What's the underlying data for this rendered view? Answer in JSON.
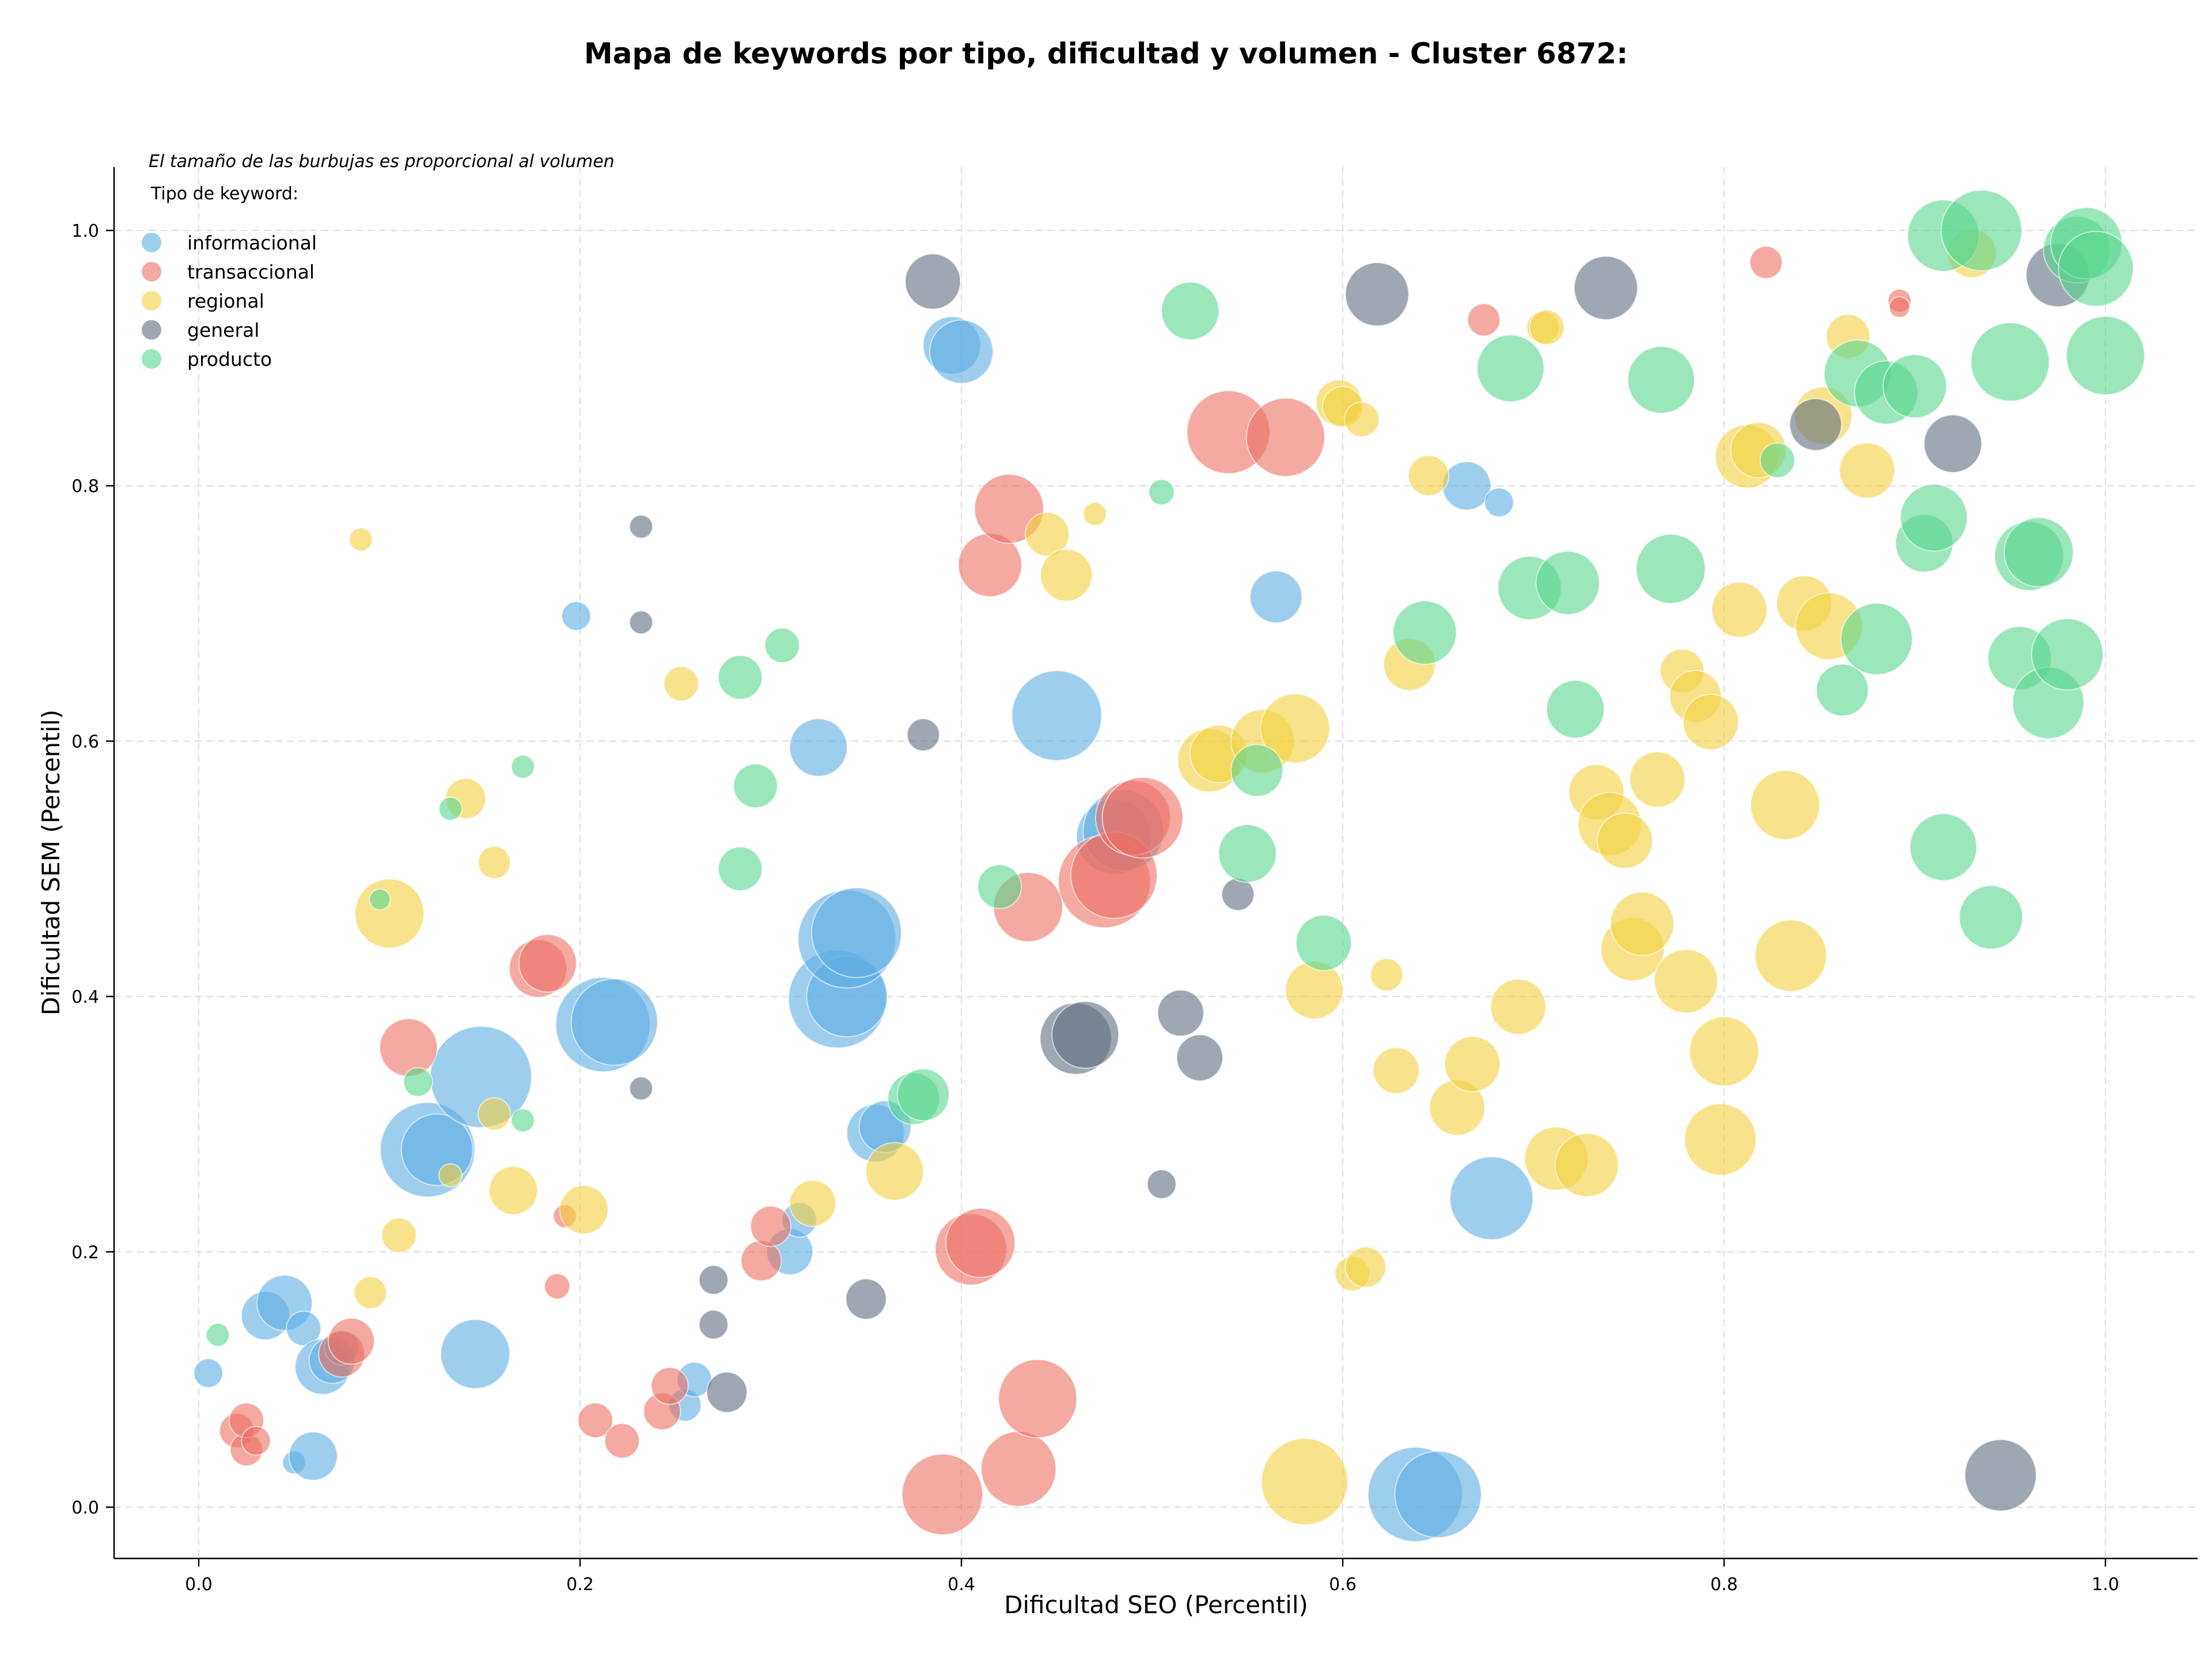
{
  "chart_data": {
    "type": "scatter",
    "title": "Mapa de keywords por tipo, dificultad y volumen - Cluster 6872:",
    "xlabel": "Dificultad SEO (Percentil)",
    "ylabel": "Dificultad SEM (Percentil)",
    "xlim": [
      -0.045,
      1.05
    ],
    "ylim": [
      -0.04,
      1.05
    ],
    "xticks": [
      "0.0",
      "0.2",
      "0.4",
      "0.6",
      "0.8",
      "1.0"
    ],
    "yticks": [
      "0.0",
      "0.2",
      "0.4",
      "0.6",
      "0.8",
      "1.0"
    ],
    "grid": true,
    "note": "El tamaño de las burbujas es proporcional al volumen",
    "legend_title": "Tipo de keyword:",
    "legend_position": "top-left",
    "series": [
      {
        "name": "informacional",
        "color": "#5DADE2",
        "points": [
          [
            0.005,
            0.105,
            0.25
          ],
          [
            0.05,
            0.035,
            0.2
          ],
          [
            0.06,
            0.04,
            0.42
          ],
          [
            0.035,
            0.15,
            0.42
          ],
          [
            0.045,
            0.16,
            0.48
          ],
          [
            0.055,
            0.14,
            0.3
          ],
          [
            0.065,
            0.11,
            0.48
          ],
          [
            0.07,
            0.115,
            0.4
          ],
          [
            0.075,
            0.125,
            0.3
          ],
          [
            0.12,
            0.28,
            0.82
          ],
          [
            0.125,
            0.28,
            0.62
          ],
          [
            0.145,
            0.12,
            0.6
          ],
          [
            0.148,
            0.337,
            0.88
          ],
          [
            0.198,
            0.698,
            0.25
          ],
          [
            0.212,
            0.378,
            0.82
          ],
          [
            0.218,
            0.38,
            0.75
          ],
          [
            0.255,
            0.08,
            0.28
          ],
          [
            0.26,
            0.1,
            0.3
          ],
          [
            0.31,
            0.2,
            0.4
          ],
          [
            0.315,
            0.225,
            0.3
          ],
          [
            0.325,
            0.595,
            0.5
          ],
          [
            0.335,
            0.398,
            0.85
          ],
          [
            0.34,
            0.4,
            0.7
          ],
          [
            0.34,
            0.445,
            0.85
          ],
          [
            0.345,
            0.45,
            0.78
          ],
          [
            0.355,
            0.293,
            0.5
          ],
          [
            0.36,
            0.298,
            0.45
          ],
          [
            0.395,
            0.91,
            0.5
          ],
          [
            0.4,
            0.905,
            0.55
          ],
          [
            0.45,
            0.62,
            0.78
          ],
          [
            0.48,
            0.525,
            0.65
          ],
          [
            0.485,
            0.53,
            0.7
          ],
          [
            0.565,
            0.713,
            0.45
          ],
          [
            0.665,
            0.8,
            0.42
          ],
          [
            0.682,
            0.787,
            0.25
          ],
          [
            0.678,
            0.242,
            0.72
          ],
          [
            0.638,
            0.01,
            0.82
          ],
          [
            0.65,
            0.01,
            0.75
          ]
        ]
      },
      {
        "name": "transaccional",
        "color": "#EC7063",
        "points": [
          [
            0.02,
            0.06,
            0.3
          ],
          [
            0.025,
            0.045,
            0.28
          ],
          [
            0.025,
            0.068,
            0.3
          ],
          [
            0.03,
            0.052,
            0.25
          ],
          [
            0.075,
            0.12,
            0.4
          ],
          [
            0.08,
            0.13,
            0.4
          ],
          [
            0.11,
            0.36,
            0.5
          ],
          [
            0.178,
            0.422,
            0.5
          ],
          [
            0.183,
            0.426,
            0.5
          ],
          [
            0.188,
            0.173,
            0.22
          ],
          [
            0.192,
            0.228,
            0.2
          ],
          [
            0.208,
            0.068,
            0.3
          ],
          [
            0.222,
            0.052,
            0.3
          ],
          [
            0.243,
            0.075,
            0.32
          ],
          [
            0.247,
            0.095,
            0.32
          ],
          [
            0.295,
            0.193,
            0.35
          ],
          [
            0.3,
            0.22,
            0.35
          ],
          [
            0.39,
            0.01,
            0.7
          ],
          [
            0.405,
            0.202,
            0.62
          ],
          [
            0.41,
            0.207,
            0.6
          ],
          [
            0.415,
            0.738,
            0.55
          ],
          [
            0.425,
            0.782,
            0.6
          ],
          [
            0.43,
            0.03,
            0.65
          ],
          [
            0.435,
            0.47,
            0.6
          ],
          [
            0.44,
            0.085,
            0.68
          ],
          [
            0.475,
            0.49,
            0.8
          ],
          [
            0.48,
            0.495,
            0.75
          ],
          [
            0.49,
            0.54,
            0.65
          ],
          [
            0.495,
            0.54,
            0.7
          ],
          [
            0.54,
            0.842,
            0.72
          ],
          [
            0.57,
            0.838,
            0.68
          ],
          [
            0.674,
            0.93,
            0.28
          ],
          [
            0.822,
            0.975,
            0.28
          ],
          [
            0.892,
            0.945,
            0.2
          ],
          [
            0.892,
            0.94,
            0.18
          ]
        ]
      },
      {
        "name": "regional",
        "color": "#F4D03F",
        "points": [
          [
            0.085,
            0.758,
            0.2
          ],
          [
            0.09,
            0.168,
            0.28
          ],
          [
            0.1,
            0.465,
            0.6
          ],
          [
            0.105,
            0.213,
            0.3
          ],
          [
            0.132,
            0.26,
            0.2
          ],
          [
            0.14,
            0.555,
            0.35
          ],
          [
            0.155,
            0.505,
            0.28
          ],
          [
            0.155,
            0.308,
            0.28
          ],
          [
            0.165,
            0.248,
            0.42
          ],
          [
            0.202,
            0.233,
            0.42
          ],
          [
            0.253,
            0.645,
            0.3
          ],
          [
            0.322,
            0.238,
            0.4
          ],
          [
            0.365,
            0.263,
            0.5
          ],
          [
            0.445,
            0.762,
            0.38
          ],
          [
            0.455,
            0.73,
            0.45
          ],
          [
            0.47,
            0.778,
            0.2
          ],
          [
            0.53,
            0.585,
            0.55
          ],
          [
            0.535,
            0.59,
            0.5
          ],
          [
            0.558,
            0.6,
            0.55
          ],
          [
            0.575,
            0.61,
            0.6
          ],
          [
            0.58,
            0.02,
            0.75
          ],
          [
            0.585,
            0.405,
            0.5
          ],
          [
            0.598,
            0.865,
            0.4
          ],
          [
            0.6,
            0.862,
            0.35
          ],
          [
            0.605,
            0.183,
            0.3
          ],
          [
            0.612,
            0.188,
            0.35
          ],
          [
            0.61,
            0.852,
            0.3
          ],
          [
            0.623,
            0.417,
            0.28
          ],
          [
            0.628,
            0.342,
            0.4
          ],
          [
            0.635,
            0.66,
            0.45
          ],
          [
            0.645,
            0.808,
            0.35
          ],
          [
            0.66,
            0.313,
            0.48
          ],
          [
            0.668,
            0.347,
            0.48
          ],
          [
            0.692,
            0.392,
            0.48
          ],
          [
            0.705,
            0.924,
            0.28
          ],
          [
            0.707,
            0.924,
            0.3
          ],
          [
            0.712,
            0.273,
            0.55
          ],
          [
            0.728,
            0.268,
            0.55
          ],
          [
            0.733,
            0.56,
            0.48
          ],
          [
            0.74,
            0.535,
            0.55
          ],
          [
            0.748,
            0.522,
            0.48
          ],
          [
            0.752,
            0.437,
            0.55
          ],
          [
            0.757,
            0.457,
            0.55
          ],
          [
            0.765,
            0.57,
            0.48
          ],
          [
            0.778,
            0.655,
            0.38
          ],
          [
            0.78,
            0.412,
            0.55
          ],
          [
            0.785,
            0.635,
            0.45
          ],
          [
            0.793,
            0.615,
            0.48
          ],
          [
            0.798,
            0.288,
            0.62
          ],
          [
            0.8,
            0.357,
            0.6
          ],
          [
            0.808,
            0.703,
            0.48
          ],
          [
            0.812,
            0.823,
            0.55
          ],
          [
            0.818,
            0.828,
            0.48
          ],
          [
            0.832,
            0.55,
            0.6
          ],
          [
            0.835,
            0.432,
            0.62
          ],
          [
            0.842,
            0.708,
            0.48
          ],
          [
            0.852,
            0.855,
            0.5
          ],
          [
            0.855,
            0.69,
            0.58
          ],
          [
            0.865,
            0.917,
            0.38
          ],
          [
            0.875,
            0.812,
            0.48
          ],
          [
            0.93,
            0.982,
            0.42
          ]
        ]
      },
      {
        "name": "general",
        "color": "#5D6D7E",
        "points": [
          [
            0.232,
            0.768,
            0.2
          ],
          [
            0.232,
            0.693,
            0.2
          ],
          [
            0.232,
            0.328,
            0.2
          ],
          [
            0.27,
            0.178,
            0.25
          ],
          [
            0.27,
            0.143,
            0.25
          ],
          [
            0.277,
            0.09,
            0.35
          ],
          [
            0.35,
            0.163,
            0.35
          ],
          [
            0.38,
            0.605,
            0.28
          ],
          [
            0.385,
            0.96,
            0.48
          ],
          [
            0.46,
            0.367,
            0.62
          ],
          [
            0.465,
            0.37,
            0.58
          ],
          [
            0.505,
            0.253,
            0.25
          ],
          [
            0.515,
            0.387,
            0.4
          ],
          [
            0.525,
            0.352,
            0.4
          ],
          [
            0.545,
            0.48,
            0.28
          ],
          [
            0.618,
            0.95,
            0.55
          ],
          [
            0.738,
            0.955,
            0.55
          ],
          [
            0.848,
            0.848,
            0.45
          ],
          [
            0.92,
            0.833,
            0.5
          ],
          [
            0.945,
            0.025,
            0.62
          ],
          [
            0.975,
            0.965,
            0.55
          ]
        ]
      },
      {
        "name": "producto",
        "color": "#58D68D",
        "points": [
          [
            0.01,
            0.135,
            0.2
          ],
          [
            0.095,
            0.476,
            0.18
          ],
          [
            0.132,
            0.547,
            0.2
          ],
          [
            0.115,
            0.333,
            0.25
          ],
          [
            0.17,
            0.58,
            0.2
          ],
          [
            0.17,
            0.303,
            0.2
          ],
          [
            0.284,
            0.65,
            0.38
          ],
          [
            0.284,
            0.5,
            0.38
          ],
          [
            0.292,
            0.565,
            0.38
          ],
          [
            0.306,
            0.675,
            0.3
          ],
          [
            0.375,
            0.32,
            0.45
          ],
          [
            0.38,
            0.323,
            0.45
          ],
          [
            0.42,
            0.486,
            0.38
          ],
          [
            0.505,
            0.795,
            0.22
          ],
          [
            0.52,
            0.937,
            0.5
          ],
          [
            0.55,
            0.512,
            0.5
          ],
          [
            0.555,
            0.577,
            0.45
          ],
          [
            0.59,
            0.442,
            0.48
          ],
          [
            0.643,
            0.685,
            0.55
          ],
          [
            0.688,
            0.892,
            0.58
          ],
          [
            0.698,
            0.72,
            0.55
          ],
          [
            0.718,
            0.724,
            0.55
          ],
          [
            0.722,
            0.625,
            0.5
          ],
          [
            0.767,
            0.883,
            0.58
          ],
          [
            0.772,
            0.735,
            0.6
          ],
          [
            0.828,
            0.82,
            0.3
          ],
          [
            0.862,
            0.64,
            0.45
          ],
          [
            0.87,
            0.888,
            0.58
          ],
          [
            0.88,
            0.68,
            0.62
          ],
          [
            0.885,
            0.873,
            0.55
          ],
          [
            0.9,
            0.878,
            0.55
          ],
          [
            0.905,
            0.755,
            0.5
          ],
          [
            0.91,
            0.775,
            0.58
          ],
          [
            0.915,
            0.517,
            0.58
          ],
          [
            0.915,
            0.996,
            0.62
          ],
          [
            0.935,
            1.0,
            0.7
          ],
          [
            0.94,
            0.462,
            0.55
          ],
          [
            0.95,
            0.897,
            0.68
          ],
          [
            0.955,
            0.665,
            0.55
          ],
          [
            0.96,
            0.745,
            0.6
          ],
          [
            0.965,
            0.748,
            0.6
          ],
          [
            0.97,
            0.63,
            0.62
          ],
          [
            0.98,
            0.668,
            0.62
          ],
          [
            0.985,
            0.985,
            0.58
          ],
          [
            0.99,
            0.99,
            0.62
          ],
          [
            0.995,
            0.97,
            0.65
          ],
          [
            1.0,
            0.902,
            0.68
          ]
        ]
      }
    ]
  }
}
